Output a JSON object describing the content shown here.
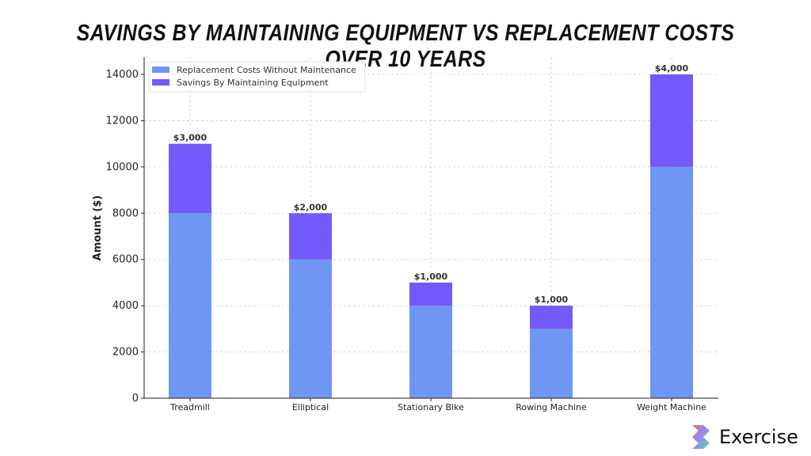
{
  "chart_data": {
    "type": "bar",
    "stacked": true,
    "title": "SAVINGS BY MAINTAINING EQUIPMENT VS REPLACEMENT COSTS OVER 10 YEARS",
    "xlabel": "",
    "ylabel": "Amount ($)",
    "ylim": [
      0,
      14000
    ],
    "yticks": [
      0,
      2000,
      4000,
      6000,
      8000,
      10000,
      12000,
      14000
    ],
    "grid": true,
    "legend": "top-left",
    "categories": [
      "Treadmill",
      "Elliptical",
      "Stationary Bike",
      "Rowing Machine",
      "Weight Machine"
    ],
    "series": [
      {
        "name": "Replacement Costs Without Maintenance",
        "values": [
          8000,
          6000,
          4000,
          3000,
          10000
        ],
        "labels": [
          "$8,000",
          "$6,000",
          "$4,000",
          "$3,000",
          "$10,000"
        ],
        "color": "#6f96f3"
      },
      {
        "name": "Savings By Maintaining Equipment",
        "values": [
          3000,
          2000,
          1000,
          1000,
          4000
        ],
        "labels": [
          "$3,000",
          "$2,000",
          "$1,000",
          "$1,000",
          "$4,000"
        ],
        "color": "#7459fb"
      }
    ]
  },
  "logo": {
    "text": "Exercise"
  }
}
